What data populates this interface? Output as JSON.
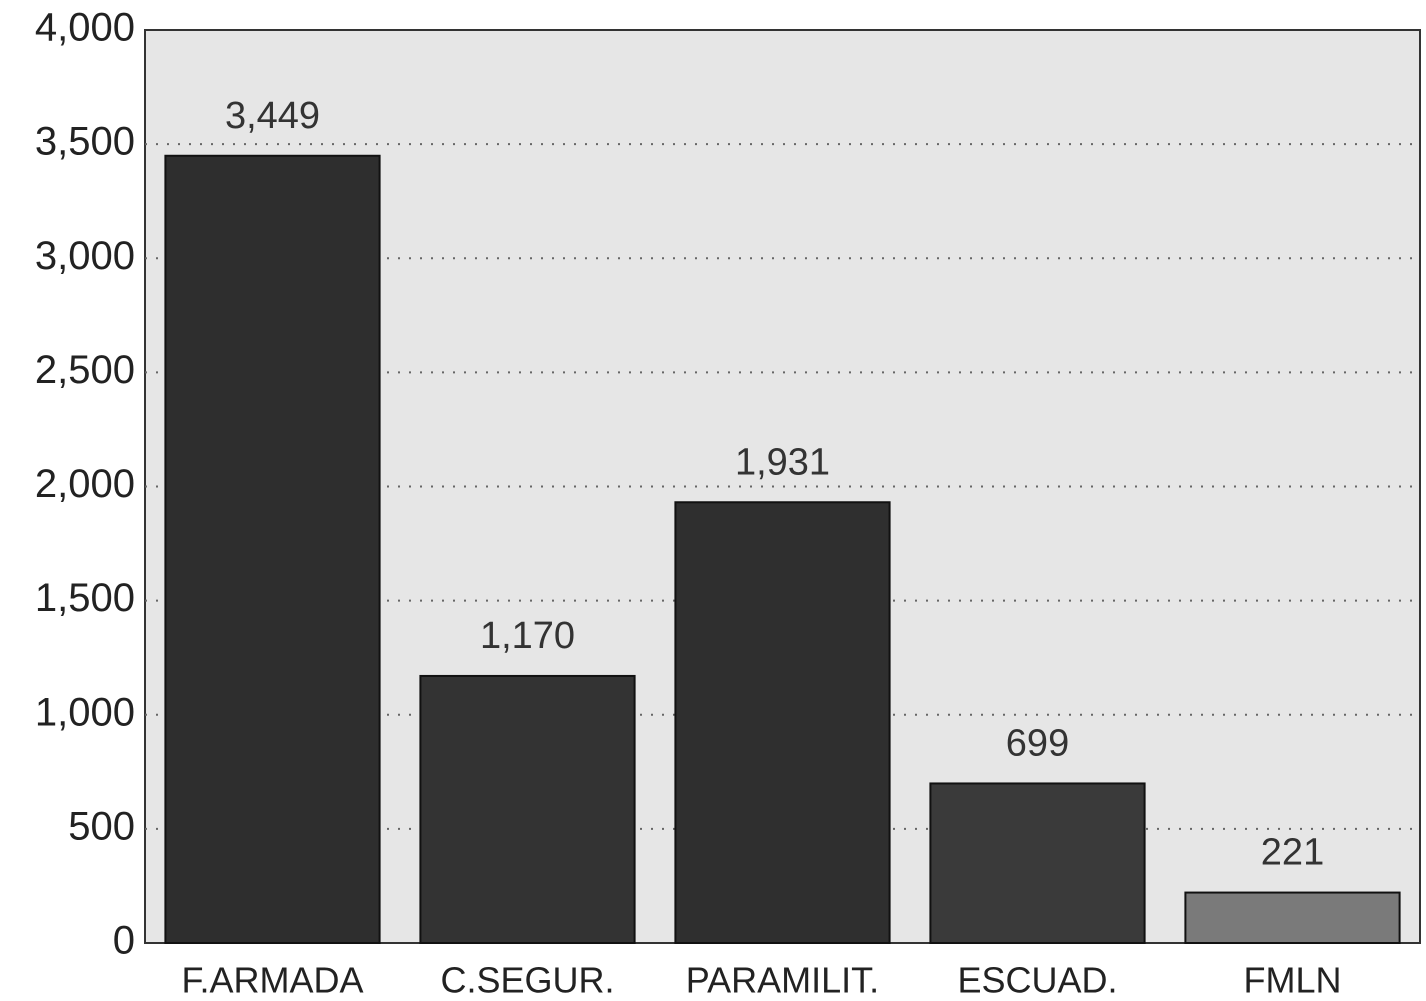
{
  "chart_data": {
    "type": "bar",
    "categories": [
      "F.ARMADA",
      "C.SEGUR.",
      "PARAMILIT.",
      "ESCUAD.",
      "FMLN"
    ],
    "values": [
      3449,
      1170,
      1931,
      699,
      221
    ],
    "value_labels": [
      "3,449",
      "1,170",
      "1,931",
      "699",
      "221"
    ],
    "colors": [
      "#2e2e2e",
      "#333333",
      "#2f2f2f",
      "#3a3a3a",
      "#7a7a7a"
    ],
    "ylim": [
      0,
      4000
    ],
    "yticks": [
      0,
      500,
      {
        "value": 1000,
        "label": "1,000"
      },
      {
        "value": 1500,
        "label": "1,500"
      },
      {
        "value": 2000,
        "label": "2,000"
      },
      {
        "value": 2500,
        "label": "2,500"
      },
      {
        "value": 3000,
        "label": "3,000"
      },
      {
        "value": 3500,
        "label": "3,500"
      },
      {
        "value": 4000,
        "label": "4,000"
      }
    ],
    "grid": true
  }
}
